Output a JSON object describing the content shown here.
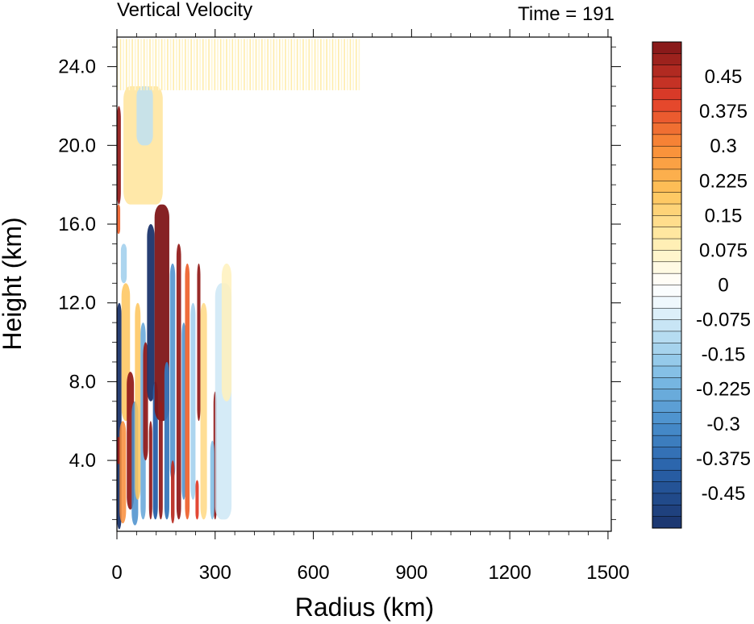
{
  "chart_data": {
    "type": "heatmap",
    "title_left": "Vertical Velocity",
    "title_right": "Time = 191",
    "xlabel": "Radius (km)",
    "ylabel": "Height (km)",
    "xlim": [
      0,
      1510
    ],
    "ylim": [
      0.4,
      25.5
    ],
    "x_ticks": [
      0,
      300,
      600,
      900,
      1200,
      1500
    ],
    "x_tick_labels": [
      "0",
      "300",
      "600",
      "900",
      "1200",
      "1500"
    ],
    "y_ticks": [
      4,
      8,
      12,
      16,
      20,
      24
    ],
    "y_tick_labels": [
      "4.0",
      "8.0",
      "12.0",
      "16.0",
      "20.0",
      "24.0"
    ],
    "colorbar": {
      "min": -0.525,
      "max": 0.525,
      "interval": 0.025,
      "labels": [
        "0.45",
        "0.375",
        "0.3",
        "0.225",
        "0.15",
        "0.075",
        "0",
        "-0.075",
        "-0.15",
        "-0.225",
        "-0.3",
        "-0.375",
        "-0.45"
      ],
      "label_values": [
        0.45,
        0.375,
        0.3,
        0.225,
        0.15,
        0.075,
        0,
        -0.075,
        -0.15,
        -0.225,
        -0.3,
        -0.375,
        -0.45
      ]
    },
    "features": [
      {
        "r0": 0,
        "r1": 14,
        "z0": 0.5,
        "z1": 12,
        "w": -0.55
      },
      {
        "r0": 0,
        "r1": 12,
        "z0": 17,
        "z1": 22,
        "w": 0.5
      },
      {
        "r0": 0,
        "r1": 10,
        "z0": 15.5,
        "z1": 17,
        "w": 0.35
      },
      {
        "r0": 0,
        "r1": 10,
        "z0": 3.8,
        "z1": 5.2,
        "w": 0.5
      },
      {
        "r0": 8,
        "r1": 28,
        "z0": 0.8,
        "z1": 6,
        "w": 0.3
      },
      {
        "r0": 14,
        "r1": 40,
        "z0": 6,
        "z1": 13,
        "w": 0.2
      },
      {
        "r0": 12,
        "r1": 30,
        "z0": 13,
        "z1": 15,
        "w": -0.15
      },
      {
        "r0": 30,
        "r1": 52,
        "z0": 1.5,
        "z1": 8.5,
        "w": 0.5
      },
      {
        "r0": 45,
        "r1": 65,
        "z0": 0.7,
        "z1": 7,
        "w": -0.3
      },
      {
        "r0": 55,
        "r1": 72,
        "z0": 2,
        "z1": 12,
        "w": 0.2
      },
      {
        "r0": 72,
        "r1": 88,
        "z0": 1,
        "z1": 11,
        "w": -0.25
      },
      {
        "r0": 80,
        "r1": 95,
        "z0": 4,
        "z1": 10,
        "w": 0.5
      },
      {
        "r0": 92,
        "r1": 115,
        "z0": 7,
        "z1": 16,
        "w": -0.55
      },
      {
        "r0": 98,
        "r1": 108,
        "z0": 1,
        "z1": 6,
        "w": 0.5
      },
      {
        "r0": 110,
        "r1": 125,
        "z0": 1,
        "z1": 8,
        "w": -0.4
      },
      {
        "r0": 115,
        "r1": 160,
        "z0": 6,
        "z1": 17,
        "w": 0.55
      },
      {
        "r0": 128,
        "r1": 140,
        "z0": 1,
        "z1": 7,
        "w": 0.5
      },
      {
        "r0": 145,
        "r1": 160,
        "z0": 1,
        "z1": 9,
        "w": -0.35
      },
      {
        "r0": 162,
        "r1": 178,
        "z0": 3,
        "z1": 14,
        "w": -0.3
      },
      {
        "r0": 165,
        "r1": 176,
        "z0": 0.8,
        "z1": 4,
        "w": 0.45
      },
      {
        "r0": 182,
        "r1": 196,
        "z0": 1,
        "z1": 15,
        "w": 0.5
      },
      {
        "r0": 198,
        "r1": 210,
        "z0": 2,
        "z1": 11,
        "w": -0.3
      },
      {
        "r0": 208,
        "r1": 222,
        "z0": 1,
        "z1": 14,
        "w": 0.35
      },
      {
        "r0": 225,
        "r1": 240,
        "z0": 2,
        "z1": 12,
        "w": -0.15
      },
      {
        "r0": 245,
        "r1": 255,
        "z0": 6,
        "z1": 14,
        "w": 0.5
      },
      {
        "r0": 240,
        "r1": 250,
        "z0": 1,
        "z1": 3,
        "w": 0.4
      },
      {
        "r0": 255,
        "r1": 275,
        "z0": 1,
        "z1": 12,
        "w": 0.15
      },
      {
        "r0": 295,
        "r1": 305,
        "z0": 1,
        "z1": 7.5,
        "w": 0.5
      },
      {
        "r0": 285,
        "r1": 298,
        "z0": 1,
        "z1": 5,
        "w": -0.2
      },
      {
        "r0": 300,
        "r1": 350,
        "z0": 1,
        "z1": 13,
        "w": -0.08
      },
      {
        "r0": 320,
        "r1": 350,
        "z0": 7,
        "z1": 14,
        "w": 0.08
      },
      {
        "r0": 20,
        "r1": 140,
        "z0": 17,
        "z1": 23,
        "w": 0.12
      },
      {
        "r0": 60,
        "r1": 110,
        "z0": 20,
        "z1": 23,
        "w": -0.1
      }
    ],
    "stratosphere_stripes": {
      "r0": 0,
      "r1": 740,
      "z0": 22.8,
      "z1": 25.4,
      "w": 0.1
    }
  },
  "colors": {
    "frame": "#000000",
    "background": "#ffffff"
  }
}
